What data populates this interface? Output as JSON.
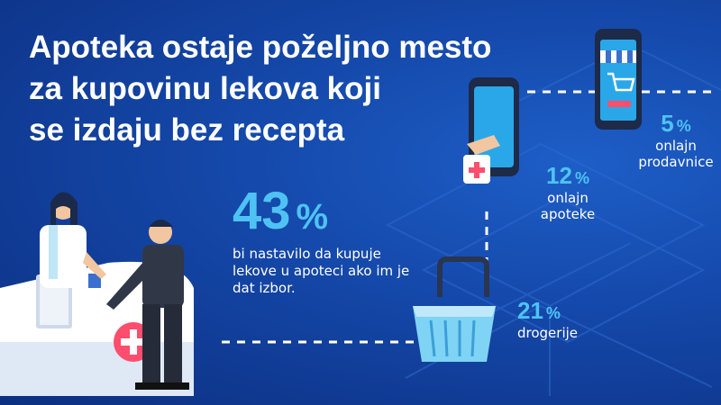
{
  "title": {
    "line1": "Apoteka ostaje poželjno mesto",
    "line2": "za kupovinu lekova koji",
    "line3": "se izdaju bez recepta"
  },
  "stats": {
    "pharmacy": {
      "value": "43",
      "unit": "%",
      "label": "bi nastavilo da kupuje lekove u apoteci ako im je dat izbor."
    },
    "online_pharmacies": {
      "value": "12",
      "unit": "%",
      "label_line1": "onlajn",
      "label_line2": "apoteke"
    },
    "online_stores": {
      "value": "5",
      "unit": "%",
      "label_line1": "onlajn",
      "label_line2": "prodavnice"
    },
    "drugstores": {
      "value": "21",
      "unit": "%",
      "label": "drogerije"
    }
  },
  "icons": {
    "pharmacist": "pharmacist-icon",
    "customer": "customer-icon",
    "counter": "pharmacy-counter-icon",
    "phone_pharmacy": "phone-pharmacy-icon",
    "phone_store": "phone-store-icon",
    "basket": "basket-icon"
  },
  "colors": {
    "background": "#1447a8",
    "accent": "#4ec3f3",
    "text": "#ffffff"
  }
}
